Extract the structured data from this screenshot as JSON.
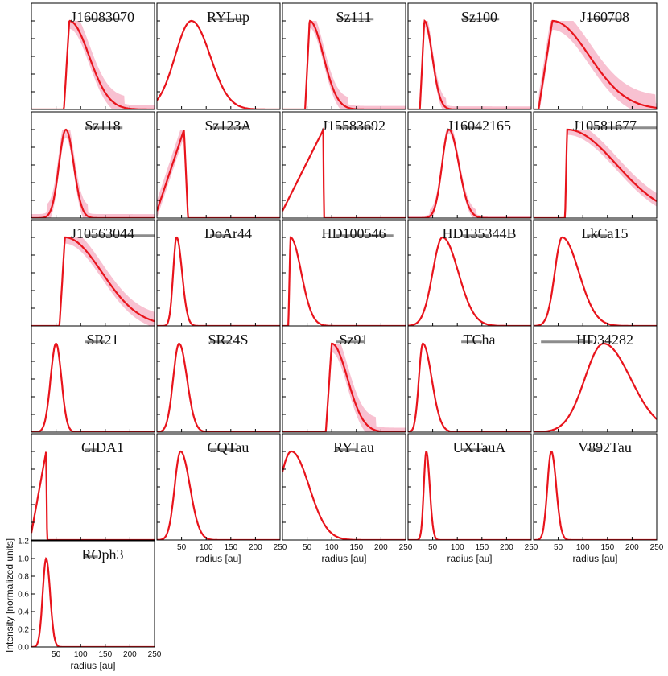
{
  "figure": {
    "xlabel": "radius [au]",
    "ylabel": "Intensity [normalized units]",
    "x_ticks": [
      50,
      100,
      150,
      200,
      250
    ],
    "y_ticks": [
      0.0,
      0.2,
      0.4,
      0.6,
      0.8,
      1.0,
      1.2
    ],
    "colors": {
      "model_line": "#e8141c",
      "posterior_band": "#f7b6c9",
      "beam_bar": "#8c8c8c",
      "frame": "#000000"
    }
  },
  "chart_data": [
    {
      "type": "line",
      "title": "J16083070",
      "xlim": [
        0,
        250
      ],
      "ylim": [
        0,
        1.2
      ],
      "grid": false,
      "profile": {
        "shape": "rise-skew",
        "rmin": 66,
        "rpeak": 77,
        "rout": 250,
        "sigma_out": 40,
        "band": 0.09
      },
      "beam_bar": [
        108,
        185
      ]
    },
    {
      "type": "line",
      "title": "RYLup",
      "xlim": [
        0,
        250
      ],
      "ylim": [
        0,
        1.2
      ],
      "grid": false,
      "profile": {
        "shape": "asym-gauss",
        "rpeak": 70,
        "sigma_in": 33,
        "sigma_out": 38,
        "band": 0
      },
      "beam_bar": [
        108,
        175
      ]
    },
    {
      "type": "line",
      "title": "Sz111",
      "xlim": [
        0,
        250
      ],
      "ylim": [
        0,
        1.2
      ],
      "grid": false,
      "profile": {
        "shape": "rise-skew",
        "rmin": 46,
        "rpeak": 55,
        "rout": 250,
        "sigma_out": 28,
        "band": 0.08
      },
      "beam_bar": [
        108,
        185
      ]
    },
    {
      "type": "line",
      "title": "Sz100",
      "xlim": [
        0,
        250
      ],
      "ylim": [
        0,
        1.2
      ],
      "grid": false,
      "profile": {
        "shape": "rise-skew",
        "rmin": 24,
        "rpeak": 33,
        "rout": 250,
        "sigma_out": 16,
        "band": 0.07
      },
      "beam_bar": [
        108,
        185
      ]
    },
    {
      "type": "line",
      "title": "J160708",
      "xlim": [
        0,
        250
      ],
      "ylim": [
        0,
        1.2
      ],
      "grid": false,
      "profile": {
        "shape": "rise-skew",
        "rmin": 10,
        "rpeak": 38,
        "rout": 250,
        "sigma_out": 75,
        "band": 0.1
      },
      "beam_bar": [
        108,
        185
      ]
    },
    {
      "type": "line",
      "title": "Sz118",
      "xlim": [
        0,
        250
      ],
      "ylim": [
        0,
        1.2
      ],
      "grid": false,
      "profile": {
        "shape": "asym-gauss",
        "rpeak": 70,
        "sigma_in": 14,
        "sigma_out": 16,
        "band": 0.09
      },
      "beam_bar": [
        108,
        185
      ]
    },
    {
      "type": "line",
      "title": "Sz123A",
      "xlim": [
        0,
        250
      ],
      "ylim": [
        0,
        1.2
      ],
      "grid": false,
      "profile": {
        "shape": "ramp-cut",
        "rmin": 0,
        "rpeak": 55,
        "rout": 63,
        "band": 0.08
      },
      "beam_bar": [
        108,
        185
      ]
    },
    {
      "type": "line",
      "title": "J15583692",
      "xlim": [
        0,
        250
      ],
      "ylim": [
        0,
        1.2
      ],
      "grid": false,
      "profile": {
        "shape": "ramp-cut",
        "rmin": 0,
        "rpeak": 83,
        "rout": 84,
        "band": 0
      },
      "beam_bar": [
        108,
        185
      ]
    },
    {
      "type": "line",
      "title": "J16042165",
      "xlim": [
        0,
        250
      ],
      "ylim": [
        0,
        1.2
      ],
      "grid": false,
      "profile": {
        "shape": "asym-gauss",
        "rpeak": 83,
        "sigma_in": 14,
        "sigma_out": 20,
        "band": 0.05
      },
      "beam_bar": [
        108,
        150
      ]
    },
    {
      "type": "line",
      "title": "J10581677",
      "xlim": [
        0,
        250
      ],
      "ylim": [
        0,
        1.2
      ],
      "grid": false,
      "profile": {
        "shape": "rise-skew",
        "rmin": 64,
        "rpeak": 68,
        "rout": 250,
        "sigma_out": 100,
        "band": 0.06
      },
      "beam_bar": [
        108,
        250
      ]
    },
    {
      "type": "line",
      "title": "J10563044",
      "xlim": [
        0,
        250
      ],
      "ylim": [
        0,
        1.2
      ],
      "grid": false,
      "profile": {
        "shape": "rise-skew",
        "rmin": 57,
        "rpeak": 68,
        "rout": 250,
        "sigma_out": 75,
        "band": 0.07
      },
      "beam_bar": [
        108,
        250
      ]
    },
    {
      "type": "line",
      "title": "DoAr44",
      "xlim": [
        0,
        250
      ],
      "ylim": [
        0,
        1.2
      ],
      "grid": false,
      "profile": {
        "shape": "asym-gauss",
        "rpeak": 40,
        "sigma_in": 7,
        "sigma_out": 11,
        "band": 0
      },
      "beam_bar": [
        108,
        150
      ]
    },
    {
      "type": "line",
      "title": "HD100546",
      "xlim": [
        0,
        250
      ],
      "ylim": [
        0,
        1.2
      ],
      "grid": false,
      "profile": {
        "shape": "rise-skew",
        "rmin": 12,
        "rpeak": 16,
        "rout": 250,
        "sigma_out": 22,
        "band": 0
      },
      "beam_bar": [
        108,
        225
      ]
    },
    {
      "type": "line",
      "title": "HD135344B",
      "xlim": [
        0,
        250
      ],
      "ylim": [
        0,
        1.2
      ],
      "grid": false,
      "profile": {
        "shape": "asym-gauss",
        "rpeak": 70,
        "sigma_in": 20,
        "sigma_out": 32,
        "band": 0
      },
      "beam_bar": [
        108,
        165
      ]
    },
    {
      "type": "line",
      "title": "LkCa15",
      "xlim": [
        0,
        250
      ],
      "ylim": [
        0,
        1.2
      ],
      "grid": false,
      "profile": {
        "shape": "asym-gauss",
        "rpeak": 58,
        "sigma_in": 15,
        "sigma_out": 34,
        "band": 0
      },
      "beam_bar": [
        108,
        150
      ]
    },
    {
      "type": "line",
      "title": "SR21",
      "xlim": [
        0,
        250
      ],
      "ylim": [
        0,
        1.2
      ],
      "grid": false,
      "profile": {
        "shape": "asym-gauss",
        "rpeak": 50,
        "sigma_in": 11,
        "sigma_out": 11,
        "band": 0
      },
      "beam_bar": [
        108,
        150
      ]
    },
    {
      "type": "line",
      "title": "SR24S",
      "xlim": [
        0,
        250
      ],
      "ylim": [
        0,
        1.2
      ],
      "grid": false,
      "profile": {
        "shape": "asym-gauss",
        "rpeak": 45,
        "sigma_in": 12,
        "sigma_out": 16,
        "band": 0
      },
      "beam_bar": [
        108,
        150
      ]
    },
    {
      "type": "line",
      "title": "Sz91",
      "xlim": [
        0,
        250
      ],
      "ylim": [
        0,
        1.2
      ],
      "grid": false,
      "profile": {
        "shape": "rise-skew",
        "rmin": 88,
        "rpeak": 100,
        "rout": 250,
        "sigma_out": 32,
        "band": 0.1
      },
      "beam_bar": [
        108,
        165
      ]
    },
    {
      "type": "line",
      "title": "TCha",
      "xlim": [
        0,
        250
      ],
      "ylim": [
        0,
        1.2
      ],
      "grid": false,
      "profile": {
        "shape": "asym-gauss",
        "rpeak": 30,
        "sigma_in": 8,
        "sigma_out": 18,
        "band": 0
      },
      "beam_bar": [
        108,
        150
      ]
    },
    {
      "type": "line",
      "title": "HD34282",
      "xlim": [
        0,
        250
      ],
      "ylim": [
        0,
        1.2
      ],
      "grid": false,
      "profile": {
        "shape": "asym-gauss",
        "rpeak": 142,
        "sigma_in": 38,
        "sigma_out": 55,
        "band": 0
      },
      "beam_bar": [
        15,
        120
      ]
    },
    {
      "type": "line",
      "title": "CIDA1",
      "xlim": [
        0,
        250
      ],
      "ylim": [
        0,
        1.2
      ],
      "grid": false,
      "profile": {
        "shape": "ramp-cut",
        "rmin": 0,
        "rpeak": 30,
        "rout": 32,
        "band": 0.02
      },
      "beam_bar": [
        108,
        135
      ]
    },
    {
      "type": "line",
      "title": "CQTau",
      "xlim": [
        0,
        250
      ],
      "ylim": [
        0,
        1.2
      ],
      "grid": false,
      "profile": {
        "shape": "asym-gauss",
        "rpeak": 48,
        "sigma_in": 12,
        "sigma_out": 19,
        "band": 0
      },
      "beam_bar": [
        108,
        165
      ]
    },
    {
      "type": "line",
      "title": "RYTau",
      "xlim": [
        0,
        250
      ],
      "ylim": [
        0,
        1.2
      ],
      "grid": false,
      "profile": {
        "shape": "asym-gauss",
        "rpeak": 18,
        "sigma_in": 25,
        "sigma_out": 36,
        "band": 0
      },
      "beam_bar": [
        108,
        150
      ]
    },
    {
      "type": "line",
      "title": "UXTauA",
      "xlim": [
        0,
        250
      ],
      "ylim": [
        0,
        1.2
      ],
      "grid": false,
      "profile": {
        "shape": "asym-gauss",
        "rpeak": 37,
        "sigma_in": 5,
        "sigma_out": 7,
        "band": 0
      },
      "beam_bar": [
        108,
        165
      ]
    },
    {
      "type": "line",
      "title": "V892Tau",
      "xlim": [
        0,
        250
      ],
      "ylim": [
        0,
        1.2
      ],
      "grid": false,
      "profile": {
        "shape": "asym-gauss",
        "rpeak": 36,
        "sigma_in": 8,
        "sigma_out": 10,
        "band": 0
      },
      "beam_bar": [
        108,
        135
      ]
    },
    {
      "type": "line",
      "title": "ROph3",
      "xlim": [
        0,
        250
      ],
      "ylim": [
        0,
        1.2
      ],
      "grid": false,
      "profile": {
        "shape": "asym-gauss",
        "rpeak": 30,
        "sigma_in": 7,
        "sigma_out": 8,
        "band": 0
      },
      "beam_bar": [
        108,
        135
      ]
    }
  ]
}
